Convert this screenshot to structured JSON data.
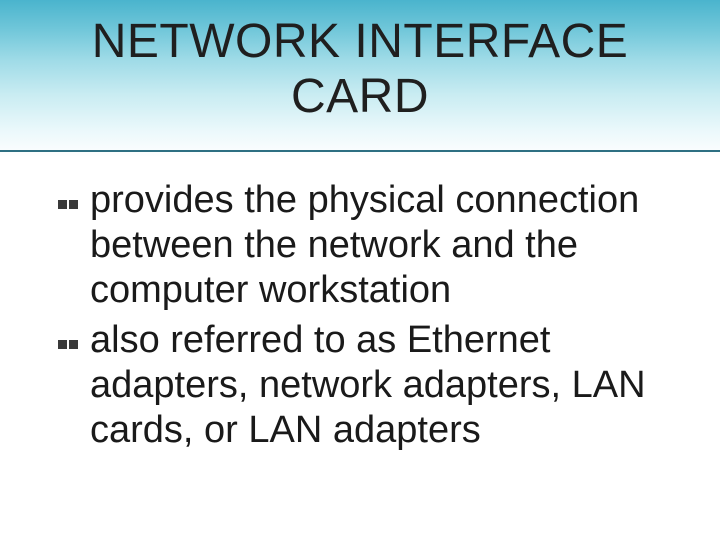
{
  "slide": {
    "title": "NETWORK INTERFACE CARD",
    "title_color": "#1f1f1f",
    "title_fontsize": 48,
    "header_gradient": [
      "#4ab4cd",
      "#6fc6d9",
      "#9fdbe7",
      "#c9ecf2",
      "#eaf8fb",
      "#ffffff"
    ],
    "underline_color": "#2d6f82",
    "background_color": "#ffffff",
    "bullets": [
      {
        "text": "provides the physical connection between the network and the computer workstation"
      },
      {
        "text": "also referred to as Ethernet adapters, network adapters, LAN cards, or LAN adapters"
      }
    ],
    "bullet_color": "#3a3a3a",
    "body_text_color": "#1a1a1a",
    "body_fontsize": 38
  }
}
